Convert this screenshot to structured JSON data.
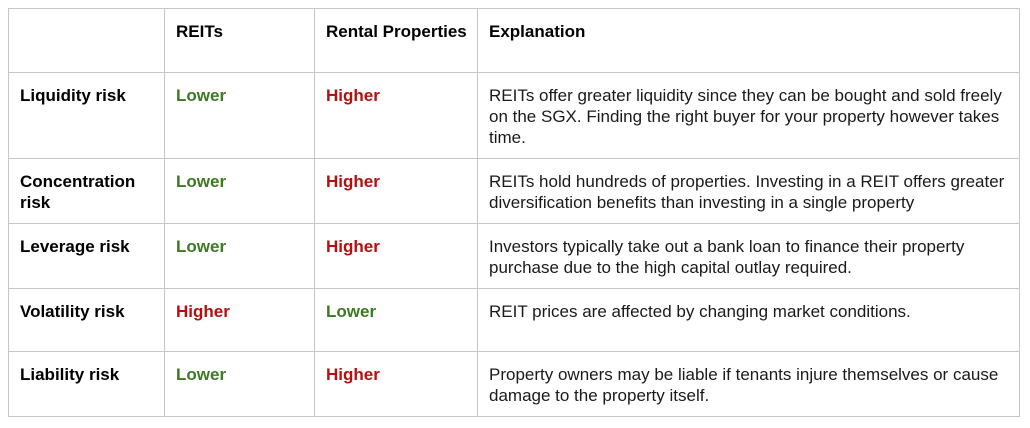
{
  "header": {
    "risk": "",
    "reits": "REITs",
    "rental": "Rental Properties",
    "explanation": "Explanation"
  },
  "rows": [
    {
      "risk": "Liquidity risk",
      "reits": "Lower",
      "rental": "Higher",
      "explanation": "REITs offer greater liquidity since they can be bought and sold freely on the SGX. Finding the right buyer for your property however takes time."
    },
    {
      "risk": "Concentration risk",
      "reits": "Lower",
      "rental": "Higher",
      "explanation": "REITs hold hundreds of properties. Investing in a REIT offers greater diversification benefits than investing in a single property"
    },
    {
      "risk": "Leverage risk",
      "reits": "Lower",
      "rental": "Higher",
      "explanation": "Investors typically take out a bank loan to finance their property purchase due to the high capital outlay required."
    },
    {
      "risk": "Volatility risk",
      "reits": "Higher",
      "rental": "Lower",
      "explanation": "REIT prices are affected by changing market conditions."
    },
    {
      "risk": "Liability risk",
      "reits": "Lower",
      "rental": "Higher",
      "explanation": "Property owners may be liable if tenants injure themselves or cause damage to the property itself."
    }
  ],
  "colors": {
    "lower": "#3b7a22",
    "higher": "#b5100f",
    "border": "#c6c6c6"
  }
}
